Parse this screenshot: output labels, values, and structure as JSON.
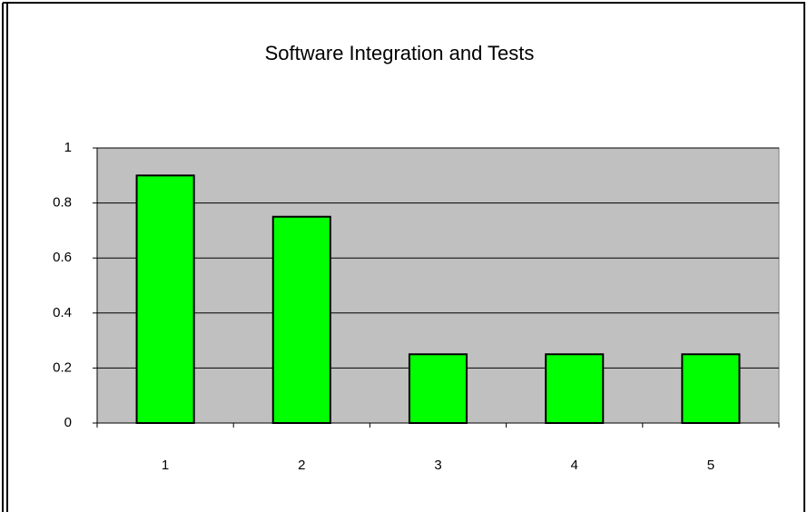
{
  "chart_data": {
    "type": "bar",
    "title": "Software Integration and Tests",
    "categories": [
      "1",
      "2",
      "3",
      "4",
      "5"
    ],
    "values": [
      0.9,
      0.75,
      0.25,
      0.25,
      0.25
    ],
    "color": "#00ff00",
    "ylim": [
      0,
      1
    ],
    "yticks": [
      0,
      0.2,
      0.4,
      0.6,
      0.8,
      1
    ],
    "grid": true
  }
}
